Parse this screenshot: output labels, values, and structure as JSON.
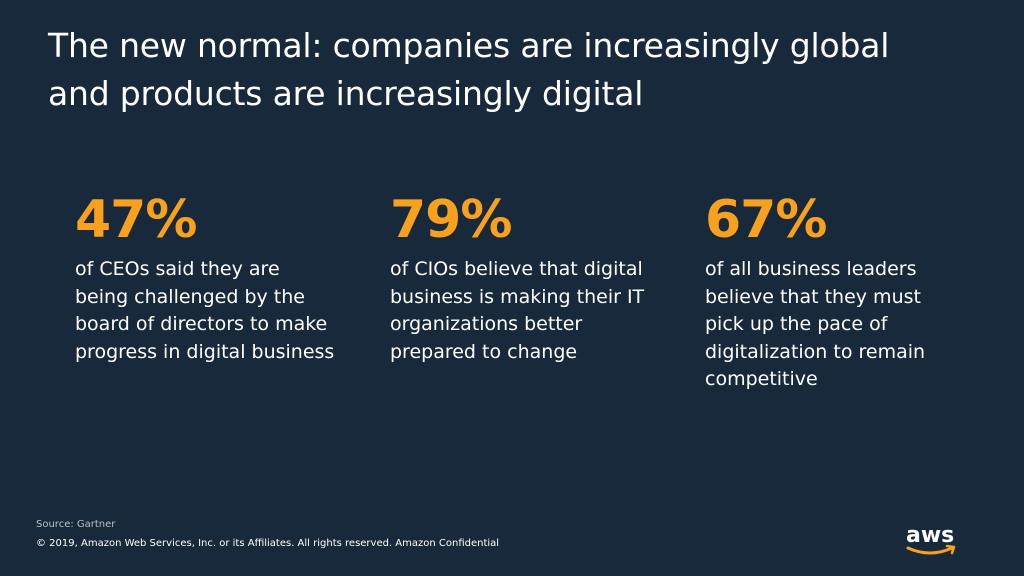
{
  "title": "The new normal: companies are increasingly global and products are increasingly digital",
  "accent_color": "#f7a11e",
  "stats": [
    {
      "value": "47%",
      "description": "of CEOs said they are being challenged by the board of directors to make progress in digital business"
    },
    {
      "value": "79%",
      "description": "of CIOs believe that digital business is making their IT organizations better prepared to change"
    },
    {
      "value": "67%",
      "description": "of all business leaders believe that they must pick up the pace of digitalization to remain competitive"
    }
  ],
  "footer": {
    "source": "Source: Gartner",
    "copyright": "© 2019, Amazon Web Services, Inc. or its Affiliates. All rights reserved. Amazon Confidential"
  },
  "logo": {
    "text": "aws",
    "icon": "aws-smile-logo"
  }
}
